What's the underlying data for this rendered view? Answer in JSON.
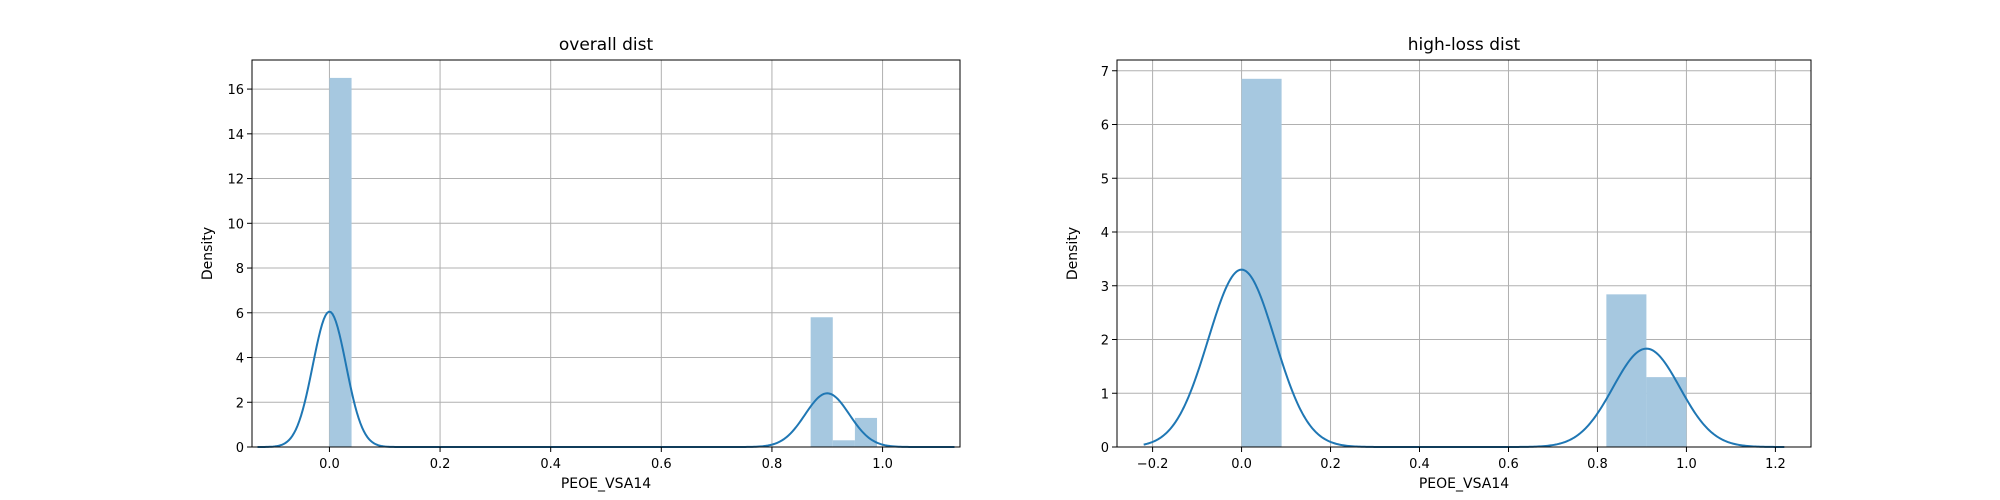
{
  "colors": {
    "bar": "#a6c8e0",
    "kde": "#1f77b4"
  },
  "chart_data": [
    {
      "type": "bar",
      "subtype": "histogram-with-kde",
      "title": "overall dist",
      "xlabel": "PEOE_VSA14",
      "ylabel": "Density",
      "xlim": [
        -0.14,
        1.14
      ],
      "ylim": [
        0,
        17.3
      ],
      "xticks": [
        0.0,
        0.2,
        0.4,
        0.6,
        0.8,
        1.0
      ],
      "xtick_labels": [
        "0.0",
        "0.2",
        "0.4",
        "0.6",
        "0.8",
        "1.0"
      ],
      "yticks": [
        0,
        2,
        4,
        6,
        8,
        10,
        12,
        14,
        16
      ],
      "ytick_labels": [
        "0",
        "2",
        "4",
        "6",
        "8",
        "10",
        "12",
        "14",
        "16"
      ],
      "grid": true,
      "bins": [
        {
          "x0": 0.0,
          "x1": 0.04,
          "density": 16.5
        },
        {
          "x0": 0.87,
          "x1": 0.91,
          "density": 5.8
        },
        {
          "x0": 0.91,
          "x1": 0.95,
          "density": 0.3
        },
        {
          "x0": 0.95,
          "x1": 0.99,
          "density": 1.3
        }
      ],
      "kde": {
        "x_range": [
          -0.13,
          1.13
        ],
        "components": [
          {
            "mean": 0.0,
            "sd": 0.03,
            "peak": 6.05
          },
          {
            "mean": 0.9,
            "sd": 0.04,
            "peak": 2.4
          }
        ]
      }
    },
    {
      "type": "bar",
      "subtype": "histogram-with-kde",
      "title": "high-loss dist",
      "xlabel": "PEOE_VSA14",
      "ylabel": "Density",
      "xlim": [
        -0.28,
        1.28
      ],
      "ylim": [
        0,
        7.2
      ],
      "xticks": [
        -0.2,
        0.0,
        0.2,
        0.4,
        0.6,
        0.8,
        1.0,
        1.2
      ],
      "xtick_labels": [
        "−0.2",
        "0.0",
        "0.2",
        "0.4",
        "0.6",
        "0.8",
        "1.0",
        "1.2"
      ],
      "yticks": [
        0,
        1,
        2,
        3,
        4,
        5,
        6,
        7
      ],
      "ytick_labels": [
        "0",
        "1",
        "2",
        "3",
        "4",
        "5",
        "6",
        "7"
      ],
      "grid": true,
      "bins": [
        {
          "x0": 0.0,
          "x1": 0.09,
          "density": 6.85
        },
        {
          "x0": 0.82,
          "x1": 0.91,
          "density": 2.84
        },
        {
          "x0": 0.91,
          "x1": 1.0,
          "density": 1.3
        }
      ],
      "kde": {
        "x_range": [
          -0.22,
          1.22
        ],
        "components": [
          {
            "mean": 0.0,
            "sd": 0.075,
            "peak": 3.3
          },
          {
            "mean": 0.91,
            "sd": 0.075,
            "peak": 1.83
          }
        ]
      }
    }
  ]
}
